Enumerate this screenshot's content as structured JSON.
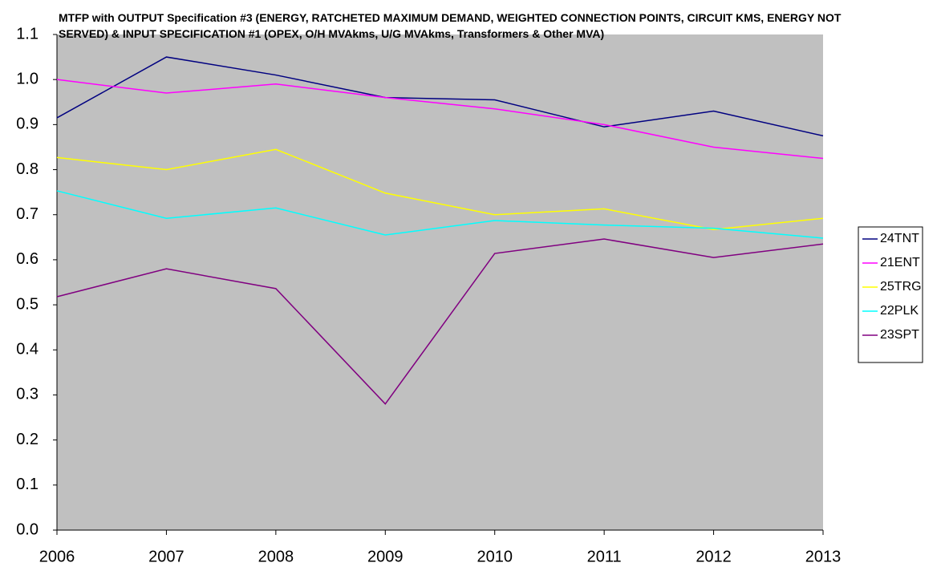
{
  "chart_data": {
    "type": "line",
    "title": "MTFP with OUTPUT Specification #3 (ENERGY, RATCHETED MAXIMUM DEMAND, WEIGHTED CONNECTION POINTS, CIRCUIT KMS, ENERGY NOT SERVED) & INPUT SPECIFICATION #1 (OPEX, O/H MVAkms, U/G MVAkms, Transformers & Other MVA)",
    "categories": [
      "2006",
      "2007",
      "2008",
      "2009",
      "2010",
      "2011",
      "2012",
      "2013"
    ],
    "series": [
      {
        "name": "24TNT",
        "color": "#000080",
        "values": [
          0.915,
          1.05,
          1.01,
          0.96,
          0.955,
          0.895,
          0.93,
          0.875
        ]
      },
      {
        "name": "21ENT",
        "color": "#ff00ff",
        "values": [
          1.0,
          0.97,
          0.99,
          0.96,
          0.935,
          0.9,
          0.85,
          0.825
        ]
      },
      {
        "name": "25TRG",
        "color": "#ffff00",
        "values": [
          0.827,
          0.8,
          0.845,
          0.748,
          0.7,
          0.713,
          0.667,
          0.692
        ]
      },
      {
        "name": "22PLK",
        "color": "#00ffff",
        "values": [
          0.753,
          0.692,
          0.715,
          0.655,
          0.687,
          0.677,
          0.67,
          0.648
        ]
      },
      {
        "name": "23SPT",
        "color": "#800080",
        "values": [
          0.518,
          0.58,
          0.536,
          0.28,
          0.614,
          0.646,
          0.605,
          0.635
        ]
      }
    ],
    "ylim": [
      0,
      1.1
    ],
    "yticks": [
      {
        "value": 0,
        "label": "0.0"
      },
      0.1,
      0.2,
      0.3,
      0.4,
      0.5,
      0.6,
      0.7,
      0.8,
      0.9,
      {
        "value": 1,
        "label": "1.0"
      },
      1.1
    ],
    "legend": "right"
  }
}
